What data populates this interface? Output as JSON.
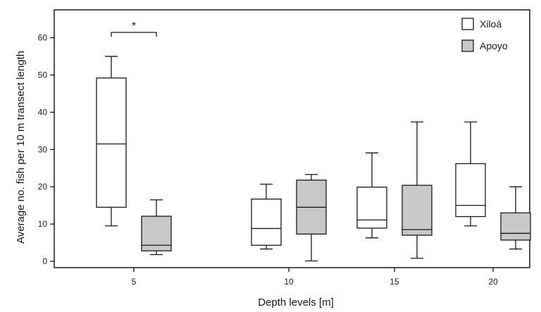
{
  "chart_data": {
    "type": "boxplot",
    "xlabel": "Depth levels [m]",
    "ylabel": "Average no. fish per 10 m transect length",
    "categories": [
      "5",
      "10",
      "15",
      "20"
    ],
    "yticks": [
      "0",
      "10",
      "20",
      "30",
      "40",
      "50",
      "60"
    ],
    "ylim": [
      -2,
      64
    ],
    "grid": false,
    "legend_position": "top-right",
    "series": [
      {
        "name": "Xiloá",
        "color": "#ffffff",
        "boxes": [
          {
            "category": "5",
            "min": 9.5,
            "q1": 14.5,
            "median": 31.5,
            "q3": 49.2,
            "max": 55.0
          },
          {
            "category": "10",
            "min": 3.3,
            "q1": 4.3,
            "median": 8.8,
            "q3": 16.7,
            "max": 20.7
          },
          {
            "category": "15",
            "min": 6.3,
            "q1": 8.9,
            "median": 11.1,
            "q3": 19.9,
            "max": 29.1
          },
          {
            "category": "20",
            "min": 9.5,
            "q1": 12.0,
            "median": 15.0,
            "q3": 26.2,
            "max": 37.4
          }
        ]
      },
      {
        "name": "Apoyo",
        "color": "#c8c8c8",
        "boxes": [
          {
            "category": "5",
            "min": 1.8,
            "q1": 2.8,
            "median": 4.3,
            "q3": 12.1,
            "max": 16.5
          },
          {
            "category": "10",
            "min": 0.1,
            "q1": 7.3,
            "median": 14.5,
            "q3": 21.8,
            "max": 23.3
          },
          {
            "category": "15",
            "min": 0.8,
            "q1": 7.0,
            "median": 8.5,
            "q3": 20.4,
            "max": 37.4
          },
          {
            "category": "20",
            "min": 3.3,
            "q1": 5.7,
            "median": 7.5,
            "q3": 13.0,
            "max": 20.0
          }
        ]
      }
    ],
    "annotations": [
      {
        "text": "*",
        "category": "5",
        "type": "significance-bracket"
      }
    ]
  }
}
